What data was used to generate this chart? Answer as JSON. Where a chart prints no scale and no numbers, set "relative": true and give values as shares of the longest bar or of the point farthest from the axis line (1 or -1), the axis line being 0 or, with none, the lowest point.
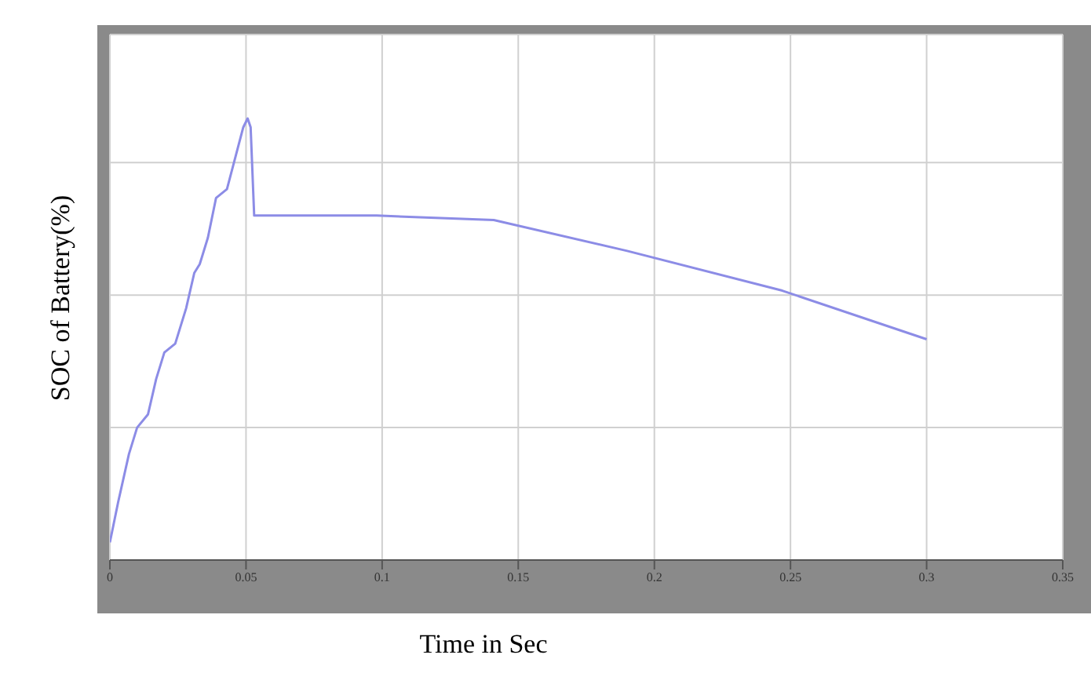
{
  "chart_data": {
    "type": "line",
    "xlabel": "Time in Sec",
    "ylabel": "SOC of Battery(%)",
    "relative": true,
    "grid": true,
    "legend": false,
    "marker": "none",
    "line_style": "solid",
    "xlim": [
      0,
      0.35
    ],
    "xticks": [
      0,
      0.05,
      0.1,
      0.15,
      0.2,
      0.25,
      0.3,
      0.35
    ],
    "series": [
      {
        "color": "#8c8ce6",
        "x": [
          0,
          0.003,
          0.007,
          0.01,
          0.014,
          0.017,
          0.02,
          0.024,
          0.028,
          0.031,
          0.033,
          0.036,
          0.039,
          0.043,
          0.046,
          0.049,
          0.0506,
          0.0517,
          0.053,
          0.098,
          0.141,
          0.19,
          0.247,
          0.3
        ],
        "values": [
          0.04,
          0.13,
          0.24,
          0.3,
          0.33,
          0.41,
          0.47,
          0.49,
          0.57,
          0.65,
          0.67,
          0.73,
          0.82,
          0.84,
          0.91,
          0.98,
          1,
          0.98,
          0.78,
          0.78,
          0.77,
          0.7,
          0.61,
          0.5
        ]
      }
    ]
  }
}
